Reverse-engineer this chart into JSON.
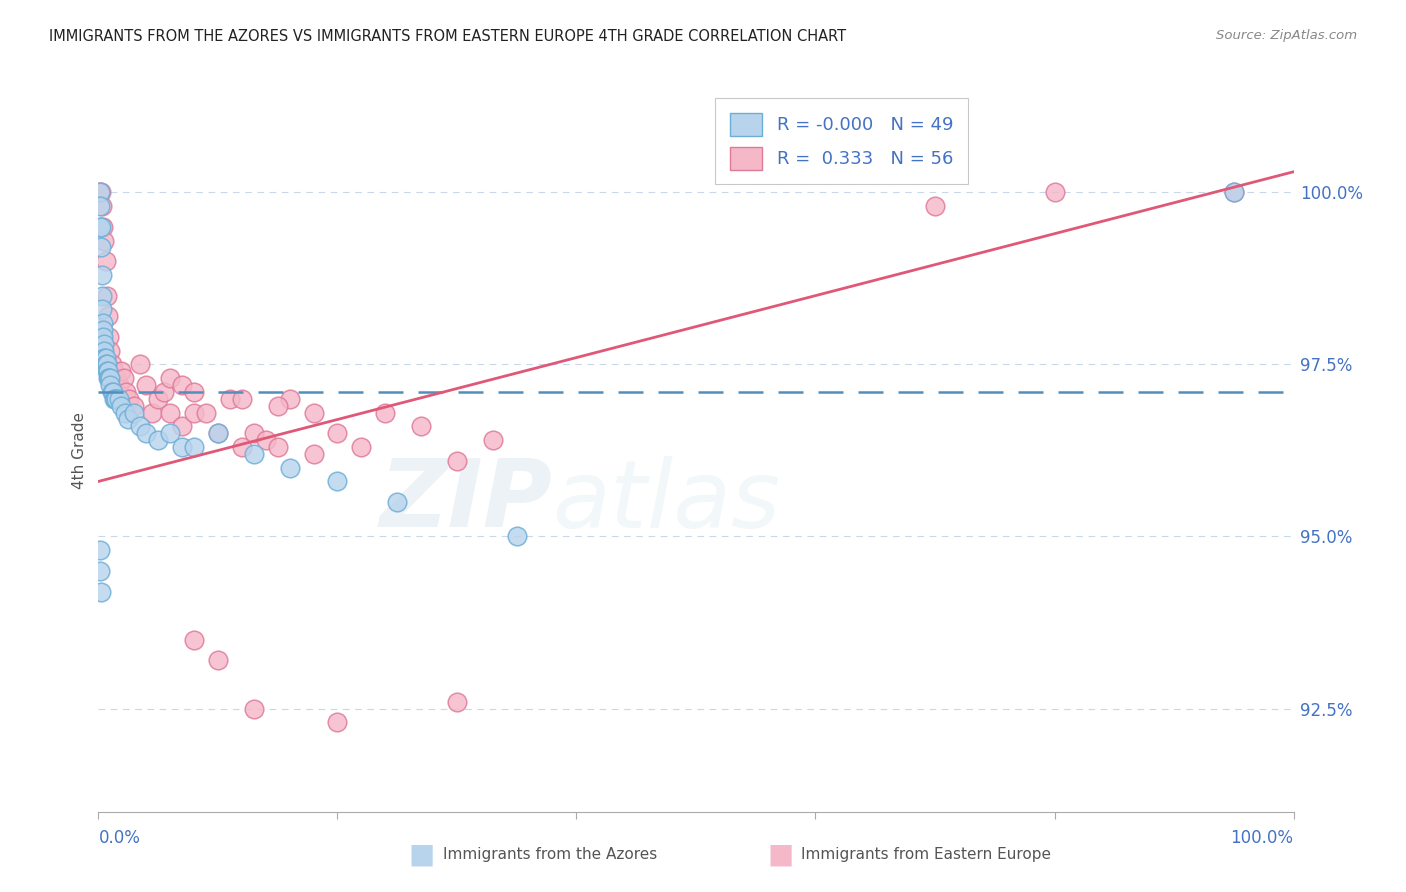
{
  "title": "IMMIGRANTS FROM THE AZORES VS IMMIGRANTS FROM EASTERN EUROPE 4TH GRADE CORRELATION CHART",
  "source": "Source: ZipAtlas.com",
  "ylabel": "4th Grade",
  "y_ticks": [
    92.5,
    95.0,
    97.5,
    100.0
  ],
  "y_tick_labels": [
    "92.5%",
    "95.0%",
    "97.5%",
    "100.0%"
  ],
  "xlim": [
    0.0,
    1.0
  ],
  "ylim": [
    91.0,
    101.5
  ],
  "watermark_zip": "ZIP",
  "watermark_atlas": "atlas",
  "legend_r1": "R = -0.000",
  "legend_n1": "N = 49",
  "legend_r2": "R =  0.333",
  "legend_n2": "N = 56",
  "series1_name": "Immigrants from the Azores",
  "series2_name": "Immigrants from Eastern Europe",
  "series1_color": "#b8d4ed",
  "series1_edge": "#6baed6",
  "series2_color": "#f4b8c8",
  "series2_edge": "#e07898",
  "trend1_color": "#4f8fc0",
  "trend2_color": "#e05878",
  "grid_color": "#c8d8e8",
  "tick_label_color": "#4472c4",
  "title_color": "#222222",
  "source_color": "#888888",
  "trend1_y": 97.1,
  "trend2_x0": 0.0,
  "trend2_y0": 95.8,
  "trend2_x1": 1.0,
  "trend2_y1": 100.3,
  "series1_x": [
    0.001,
    0.001,
    0.001,
    0.002,
    0.002,
    0.003,
    0.003,
    0.003,
    0.004,
    0.004,
    0.004,
    0.005,
    0.005,
    0.005,
    0.006,
    0.006,
    0.007,
    0.007,
    0.008,
    0.008,
    0.009,
    0.01,
    0.01,
    0.011,
    0.012,
    0.013,
    0.014,
    0.015,
    0.017,
    0.019,
    0.022,
    0.025,
    0.03,
    0.035,
    0.04,
    0.05,
    0.06,
    0.07,
    0.08,
    0.1,
    0.13,
    0.16,
    0.2,
    0.25,
    0.35,
    0.001,
    0.001,
    0.002,
    0.95
  ],
  "series1_y": [
    100.0,
    99.8,
    99.5,
    99.5,
    99.2,
    98.8,
    98.5,
    98.3,
    98.1,
    98.0,
    97.9,
    97.8,
    97.7,
    97.6,
    97.6,
    97.5,
    97.5,
    97.4,
    97.4,
    97.3,
    97.3,
    97.3,
    97.2,
    97.1,
    97.1,
    97.0,
    97.0,
    97.0,
    97.0,
    96.9,
    96.8,
    96.7,
    96.8,
    96.6,
    96.5,
    96.4,
    96.5,
    96.3,
    96.3,
    96.5,
    96.2,
    96.0,
    95.8,
    95.5,
    95.0,
    94.8,
    94.5,
    94.2,
    100.0
  ],
  "series2_x": [
    0.001,
    0.002,
    0.003,
    0.004,
    0.005,
    0.006,
    0.007,
    0.008,
    0.009,
    0.01,
    0.011,
    0.013,
    0.015,
    0.017,
    0.019,
    0.021,
    0.023,
    0.026,
    0.03,
    0.035,
    0.04,
    0.045,
    0.05,
    0.055,
    0.06,
    0.07,
    0.08,
    0.09,
    0.1,
    0.11,
    0.12,
    0.13,
    0.14,
    0.15,
    0.16,
    0.18,
    0.2,
    0.22,
    0.24,
    0.27,
    0.3,
    0.33,
    0.06,
    0.07,
    0.08,
    0.12,
    0.15,
    0.18,
    0.08,
    0.1,
    0.13,
    0.2,
    0.3,
    0.7,
    0.8,
    0.95
  ],
  "series2_y": [
    100.0,
    100.0,
    99.8,
    99.5,
    99.3,
    99.0,
    98.5,
    98.2,
    97.9,
    97.7,
    97.5,
    97.4,
    97.3,
    97.2,
    97.4,
    97.3,
    97.1,
    97.0,
    96.9,
    97.5,
    97.2,
    96.8,
    97.0,
    97.1,
    96.8,
    96.6,
    96.8,
    96.8,
    96.5,
    97.0,
    96.3,
    96.5,
    96.4,
    96.3,
    97.0,
    96.2,
    96.5,
    96.3,
    96.8,
    96.6,
    96.1,
    96.4,
    97.3,
    97.2,
    97.1,
    97.0,
    96.9,
    96.8,
    93.5,
    93.2,
    92.5,
    92.3,
    92.6,
    99.8,
    100.0,
    100.0
  ]
}
